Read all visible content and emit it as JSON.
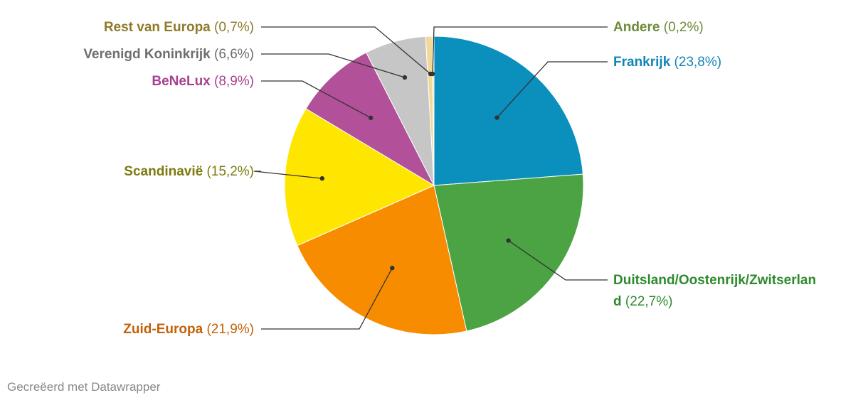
{
  "chart_data": {
    "type": "pie",
    "title": "",
    "slices": [
      {
        "name": "Frankrijk",
        "pct_label": "(23,8%)",
        "value": 23.8,
        "color": "#0b8fbc",
        "label_color": "#1185b8"
      },
      {
        "name": "Duitsland/Oostenrijk/Zwitserlan",
        "name2": "d",
        "pct_label": "(22,7%)",
        "value": 22.7,
        "color": "#4ba343",
        "label_color": "#2e8a2c"
      },
      {
        "name": "Zuid-Europa",
        "pct_label": "(21,9%)",
        "value": 21.9,
        "color": "#f78c00",
        "label_color": "#c2620a"
      },
      {
        "name": "Scandinavië",
        "pct_label": "(15,2%)",
        "value": 15.2,
        "color": "#ffe600",
        "label_color": "#7d7a10"
      },
      {
        "name": "BeNeLux",
        "pct_label": "(8,9%)",
        "value": 8.9,
        "color": "#b2519a",
        "label_color": "#a8408f"
      },
      {
        "name": "Verenigd Koninkrijk",
        "pct_label": "(6,6%)",
        "value": 6.6,
        "color": "#c6c6c6",
        "label_color": "#6e6e6e"
      },
      {
        "name": "Rest van Europa",
        "pct_label": "(0,7%)",
        "value": 0.7,
        "color": "#f2d999",
        "label_color": "#8f7a2a"
      },
      {
        "name": "Andere",
        "pct_label": "(0,2%)",
        "value": 0.2,
        "color": "#e8e2b0",
        "label_color": "#6e8a3a"
      }
    ]
  },
  "credit": "Gecreëerd met Datawrapper"
}
